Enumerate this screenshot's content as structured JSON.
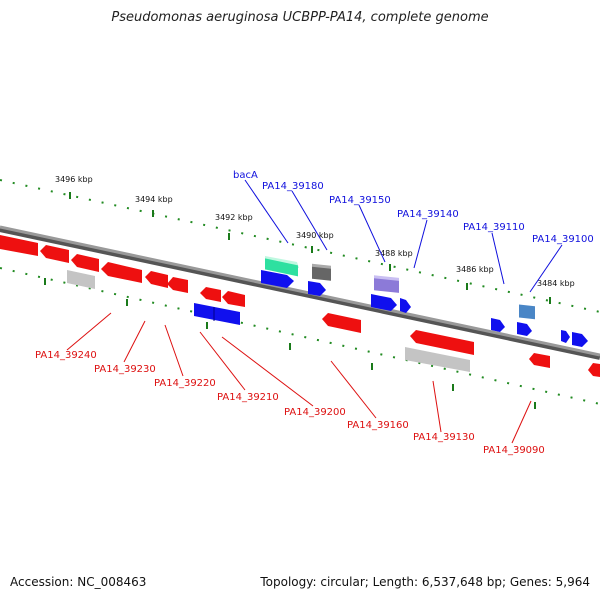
{
  "title": "Pseudomonas aeruginosa UCBPP-PA14, complete genome",
  "footer": {
    "accession": "Accession: NC_008463",
    "summary": "Topology: circular; Length: 6,537,648 bp; Genes: 5,964"
  },
  "colors": {
    "forward": "#1010ee",
    "reverse": "#ee1010",
    "ruler": "#228b22",
    "backbone": "#888888",
    "teal": "#2ee0a0",
    "gray": "#c4c4c4",
    "dark": "#666666",
    "violet": "#8c7ad8",
    "steel": "#4a86c6"
  },
  "kbp_ticks": [
    "3496 kbp",
    "3494 kbp",
    "3492 kbp",
    "3490 kbp",
    "3488 kbp",
    "3486 kbp",
    "3484 kbp"
  ],
  "labels_top": [
    "bacA",
    "PA14_39180",
    "PA14_39150",
    "PA14_39140",
    "PA14_39110",
    "PA14_39100"
  ],
  "labels_bottom": [
    "PA14_39240",
    "PA14_39230",
    "PA14_39220",
    "PA14_39210",
    "PA14_39200",
    "PA14_39160",
    "PA14_39130",
    "PA14_39090"
  ]
}
